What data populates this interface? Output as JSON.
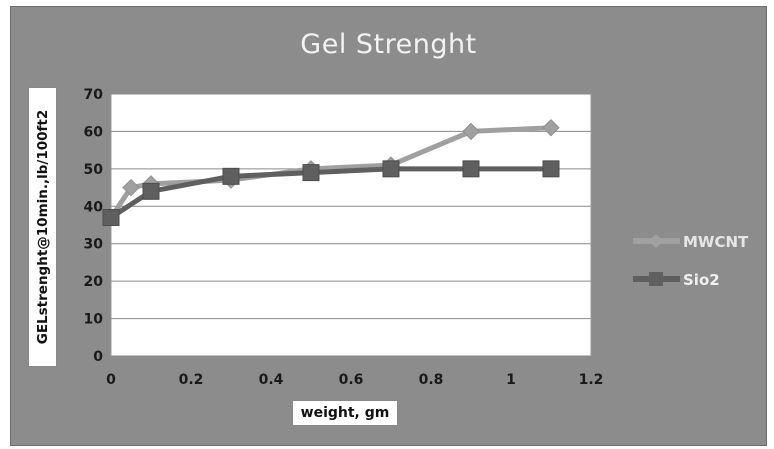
{
  "chart_data": {
    "type": "line",
    "title": "Gel Strenght",
    "xlabel": "weight, gm",
    "ylabel": "GELstrenght@10min.,lb/100ft2",
    "xlim": [
      0,
      1.2
    ],
    "ylim": [
      0,
      70
    ],
    "xticks": [
      "0",
      "0.2",
      "0.4",
      "0.6",
      "0.8",
      "1",
      "1.2"
    ],
    "yticks": [
      "0",
      "10",
      "20",
      "30",
      "40",
      "50",
      "60",
      "70"
    ],
    "grid": "horizontal",
    "legend_position": "right",
    "series": [
      {
        "name": "MWCNT",
        "marker": "diamond",
        "color": "#a0a0a0",
        "x": [
          0,
          0.05,
          0.1,
          0.3,
          0.5,
          0.7,
          0.9,
          1.1
        ],
        "y": [
          37,
          45,
          46,
          47,
          50,
          51,
          60,
          61
        ]
      },
      {
        "name": "Sio2",
        "marker": "square",
        "color": "#5f5f5f",
        "x": [
          0,
          0.1,
          0.3,
          0.5,
          0.7,
          0.9,
          1.1
        ],
        "y": [
          37,
          44,
          48,
          49,
          50,
          50,
          50
        ]
      }
    ]
  }
}
